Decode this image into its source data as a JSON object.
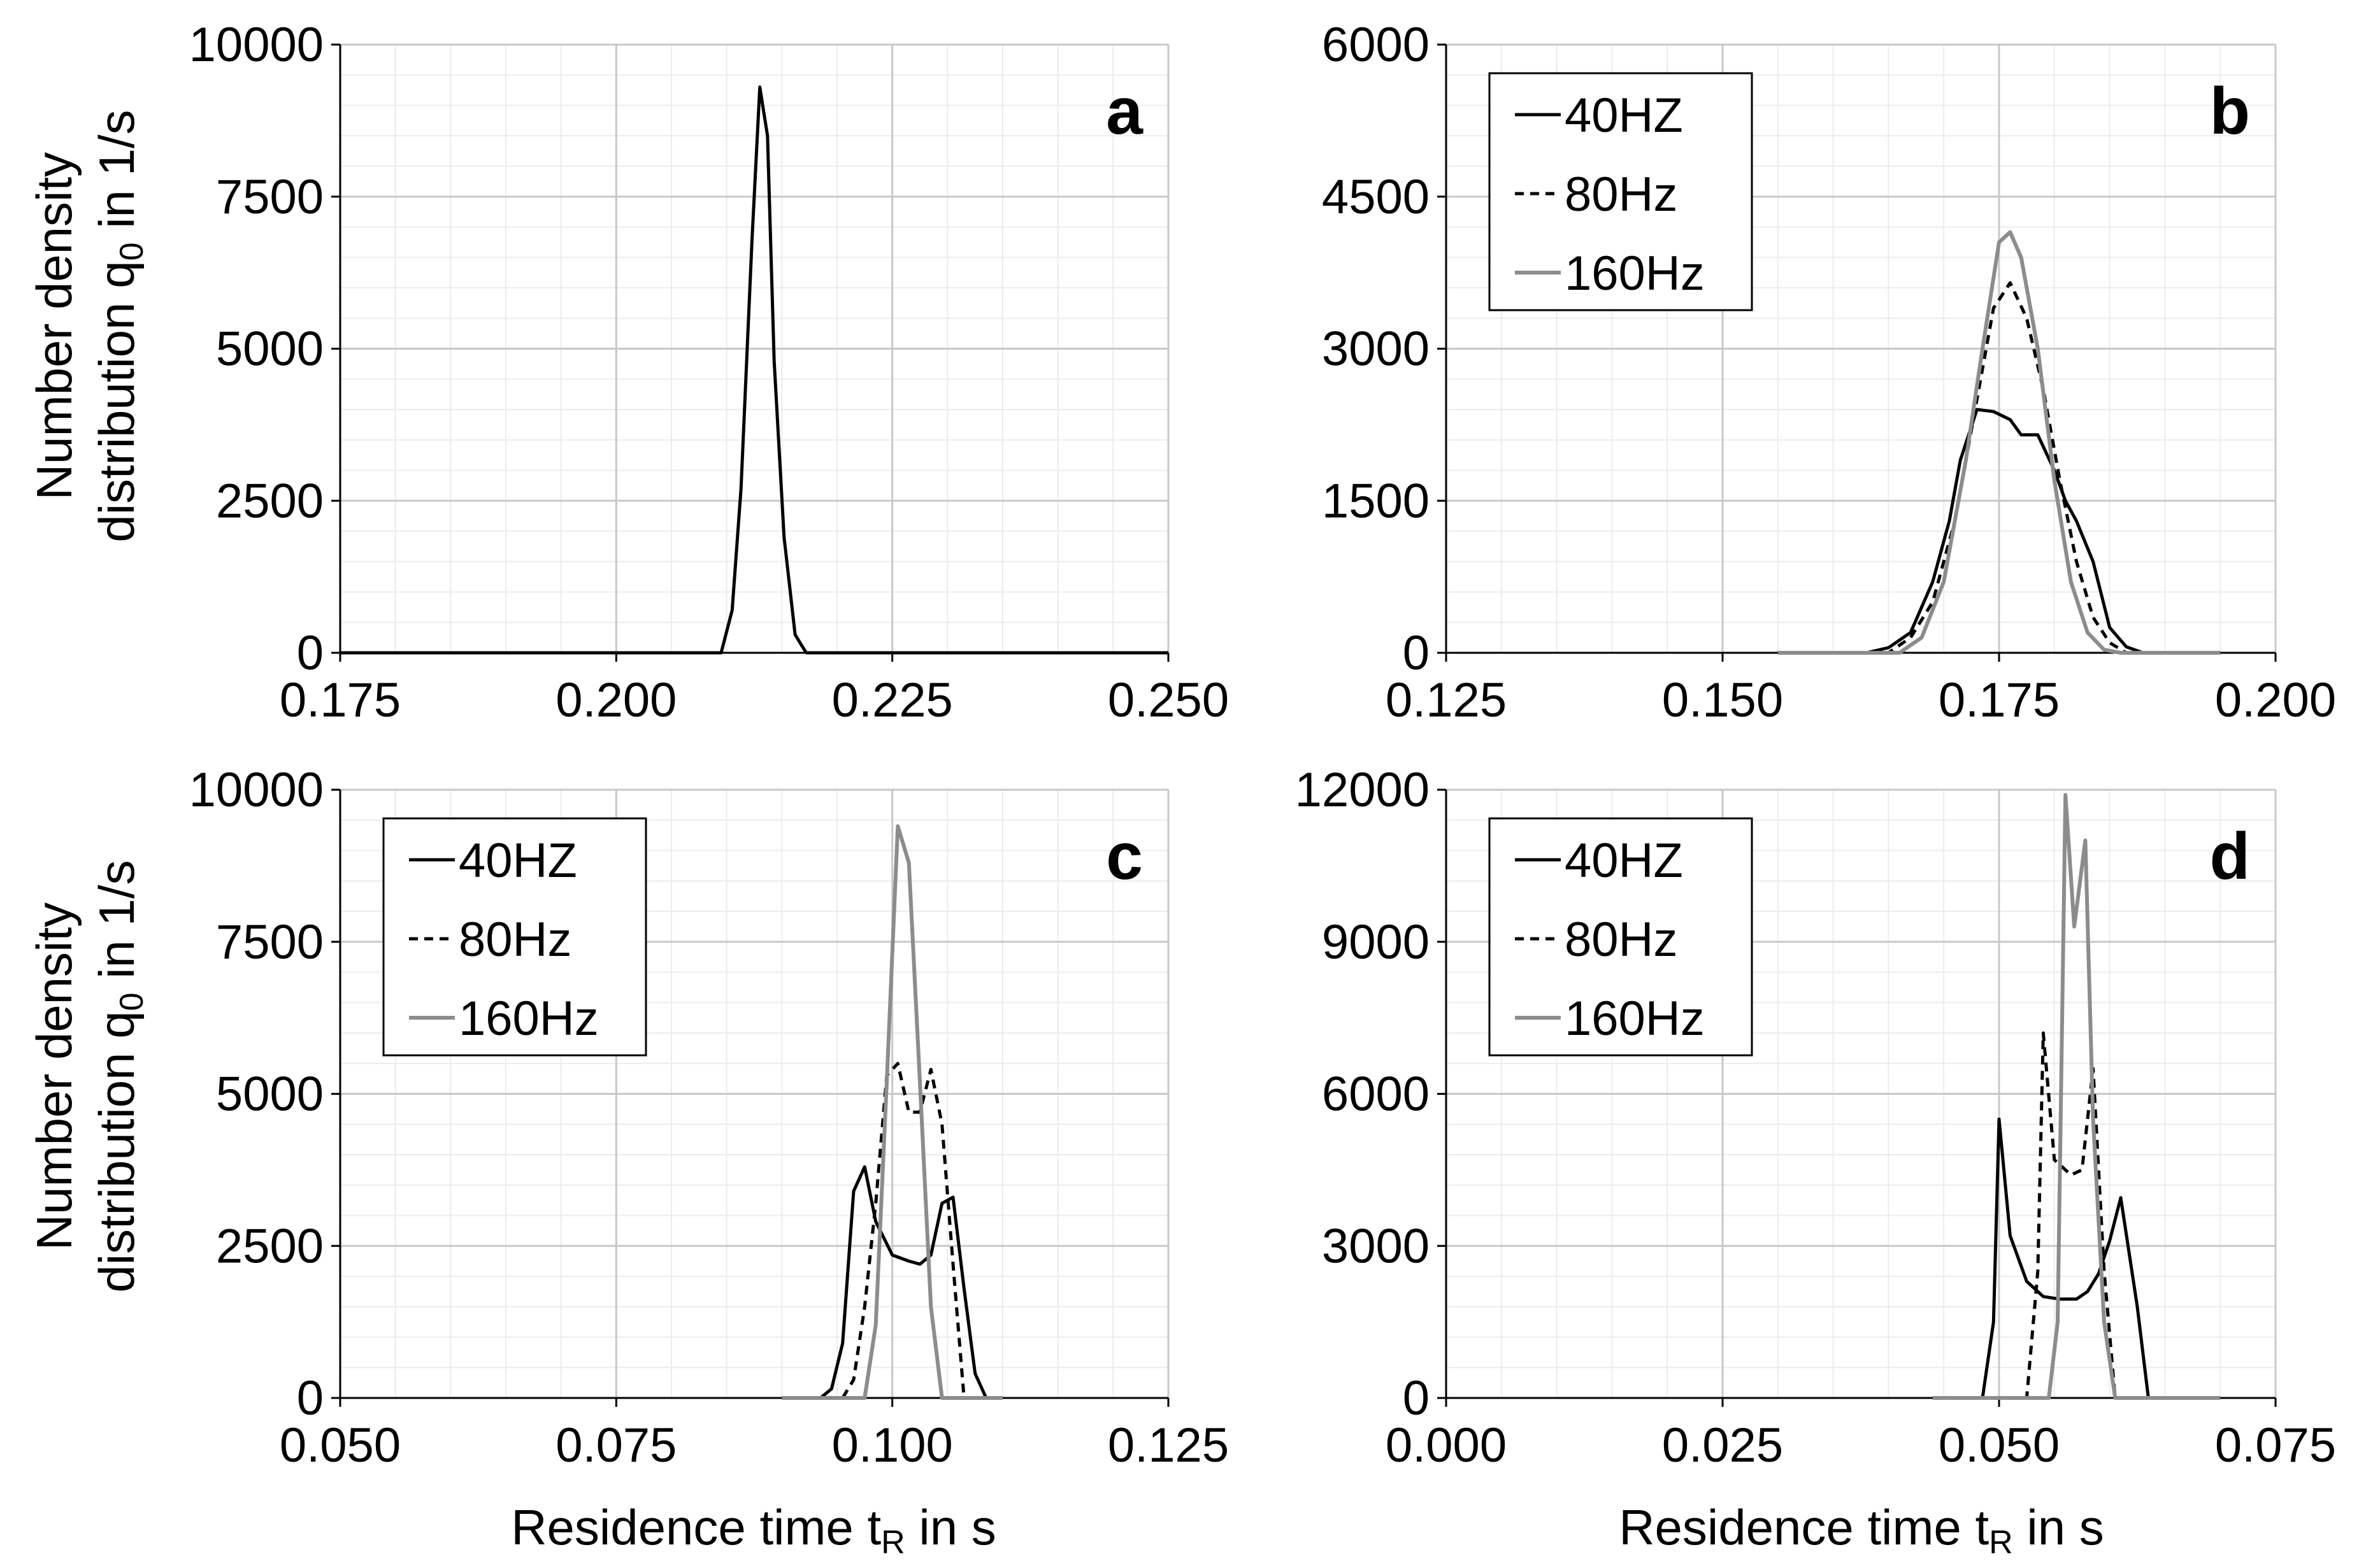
{
  "y_axis_label": {
    "line1": "Number density",
    "line2_prefix": "distribution q",
    "line2_sub": "0",
    "line2_suffix": " in 1/s"
  },
  "x_axis_label": {
    "prefix": "Residence time t",
    "sub": "R",
    "suffix": " in s"
  },
  "colors": {
    "line_40": "#000000",
    "line_80": "#000000",
    "line_160": "#8c8c8c",
    "grid_major": "#c8c8c8",
    "grid_minor": "#ececec"
  },
  "chart_data": [
    {
      "panel": "a",
      "type": "line",
      "xlim": [
        0.175,
        0.25
      ],
      "ylim": [
        0,
        10000
      ],
      "xticks": [
        "0.175",
        "0.200",
        "0.225",
        "0.250"
      ],
      "yticks": [
        "0",
        "2500",
        "5000",
        "7500",
        "10000"
      ],
      "legend": [],
      "series": [
        {
          "name": "",
          "style": "solid",
          "color": "#000000",
          "x": [
            0.175,
            0.2095,
            0.2105,
            0.2113,
            0.2123,
            0.213,
            0.2137,
            0.2143,
            0.2152,
            0.2162,
            0.2172,
            0.25
          ],
          "y": [
            0,
            0,
            700,
            2700,
            6800,
            9300,
            8500,
            4800,
            1900,
            300,
            0,
            0
          ]
        }
      ]
    },
    {
      "panel": "b",
      "type": "line",
      "xlim": [
        0.125,
        0.2
      ],
      "ylim": [
        0,
        6000
      ],
      "xticks": [
        "0.125",
        "0.150",
        "0.175",
        "0.200"
      ],
      "yticks": [
        "0",
        "1500",
        "3000",
        "4500",
        "6000"
      ],
      "legend": [
        "40HZ",
        "80Hz",
        "160Hz"
      ],
      "series": [
        {
          "name": "40HZ",
          "style": "solid",
          "color": "#000000",
          "x": [
            0.155,
            0.163,
            0.165,
            0.167,
            0.169,
            0.1705,
            0.1715,
            0.173,
            0.1745,
            0.176,
            0.177,
            0.1785,
            0.18,
            0.181,
            0.182,
            0.1835,
            0.185,
            0.1865,
            0.188,
            0.195
          ],
          "y": [
            0,
            0,
            50,
            200,
            700,
            1300,
            1900,
            2400,
            2380,
            2300,
            2150,
            2150,
            1800,
            1500,
            1300,
            900,
            250,
            60,
            0,
            0
          ]
        },
        {
          "name": "80Hz",
          "style": "dashed",
          "color": "#000000",
          "x": [
            0.155,
            0.165,
            0.167,
            0.169,
            0.171,
            0.173,
            0.1745,
            0.176,
            0.1775,
            0.179,
            0.1805,
            0.182,
            0.1835,
            0.185,
            0.1865,
            0.195
          ],
          "y": [
            0,
            0,
            150,
            500,
            1300,
            2500,
            3400,
            3650,
            3300,
            2600,
            1700,
            900,
            350,
            100,
            0,
            0
          ]
        },
        {
          "name": "160Hz",
          "style": "solid",
          "color": "#8c8c8c",
          "x": [
            0.155,
            0.166,
            0.168,
            0.17,
            0.172,
            0.1735,
            0.175,
            0.176,
            0.177,
            0.1785,
            0.18,
            0.1815,
            0.183,
            0.1845,
            0.186,
            0.195
          ],
          "y": [
            0,
            0,
            150,
            700,
            1900,
            3000,
            4050,
            4150,
            3900,
            3000,
            1700,
            700,
            200,
            30,
            0,
            0
          ]
        }
      ]
    },
    {
      "panel": "c",
      "type": "line",
      "xlim": [
        0.05,
        0.125
      ],
      "ylim": [
        0,
        10000
      ],
      "xticks": [
        "0.050",
        "0.075",
        "0.100",
        "0.125"
      ],
      "yticks": [
        "0",
        "2500",
        "5000",
        "7500",
        "10000"
      ],
      "legend": [
        "40HZ",
        "80Hz",
        "160Hz"
      ],
      "series": [
        {
          "name": "40HZ",
          "style": "solid",
          "color": "#000000",
          "x": [
            0.09,
            0.0935,
            0.0945,
            0.0955,
            0.0965,
            0.0975,
            0.0985,
            0.1,
            0.1015,
            0.1025,
            0.1035,
            0.1045,
            0.1055,
            0.1065,
            0.1075,
            0.1085,
            0.11
          ],
          "y": [
            0,
            0,
            150,
            900,
            3400,
            3800,
            2900,
            2350,
            2250,
            2200,
            2350,
            3200,
            3300,
            1800,
            400,
            0,
            0
          ]
        },
        {
          "name": "80Hz",
          "style": "dashed",
          "color": "#000000",
          "x": [
            0.09,
            0.0955,
            0.0965,
            0.0975,
            0.0985,
            0.0995,
            0.1005,
            0.1015,
            0.1025,
            0.1035,
            0.1045,
            0.1055,
            0.1065,
            0.11
          ],
          "y": [
            0,
            0,
            300,
            1500,
            3200,
            5300,
            5500,
            4700,
            4700,
            5400,
            4500,
            2200,
            0,
            0
          ]
        },
        {
          "name": "160Hz",
          "style": "solid",
          "color": "#8c8c8c",
          "x": [
            0.09,
            0.0975,
            0.0985,
            0.0995,
            0.1005,
            0.1015,
            0.1025,
            0.1035,
            0.1045,
            0.11
          ],
          "y": [
            0,
            0,
            1200,
            5200,
            9400,
            8800,
            5200,
            1500,
            0,
            0
          ]
        }
      ]
    },
    {
      "panel": "d",
      "type": "line",
      "xlim": [
        0.0,
        0.075
      ],
      "ylim": [
        0,
        12000
      ],
      "xticks": [
        "0.000",
        "0.025",
        "0.050",
        "0.075"
      ],
      "yticks": [
        "0",
        "3000",
        "6000",
        "9000",
        "12000"
      ],
      "legend": [
        "40HZ",
        "80Hz",
        "160Hz"
      ],
      "series": [
        {
          "name": "40HZ",
          "style": "solid",
          "color": "#000000",
          "x": [
            0.044,
            0.0485,
            0.0495,
            0.05,
            0.051,
            0.0525,
            0.054,
            0.0555,
            0.057,
            0.058,
            0.059,
            0.06,
            0.061,
            0.0625,
            0.0635,
            0.07
          ],
          "y": [
            0,
            0,
            1500,
            5500,
            3200,
            2300,
            2000,
            1950,
            1950,
            2100,
            2450,
            3100,
            3950,
            1800,
            0,
            0
          ]
        },
        {
          "name": "80Hz",
          "style": "dashed",
          "color": "#000000",
          "x": [
            0.044,
            0.0525,
            0.0535,
            0.054,
            0.055,
            0.0565,
            0.0575,
            0.058,
            0.0585,
            0.0595,
            0.0605,
            0.07
          ],
          "y": [
            0,
            0,
            2500,
            7200,
            4700,
            4400,
            4500,
            5500,
            6500,
            2500,
            0,
            0
          ]
        },
        {
          "name": "160Hz",
          "style": "solid",
          "color": "#8c8c8c",
          "x": [
            0.044,
            0.0545,
            0.0553,
            0.056,
            0.0568,
            0.0578,
            0.0585,
            0.0595,
            0.0605,
            0.07
          ],
          "y": [
            0,
            0,
            1500,
            11900,
            9300,
            11000,
            5500,
            1500,
            0,
            0
          ]
        }
      ]
    }
  ]
}
